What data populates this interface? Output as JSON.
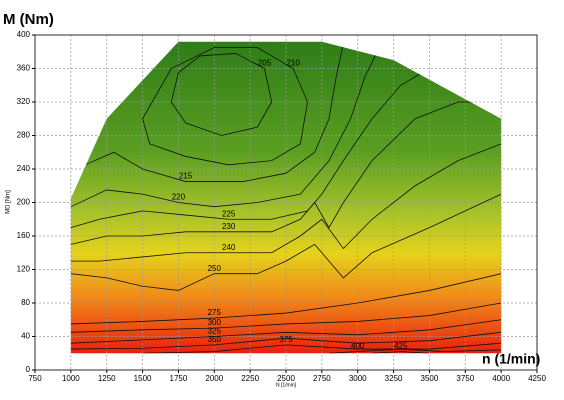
{
  "chart_data": {
    "type": "contour",
    "y_title": "M (Nm)",
    "x_title": "n (1/min)",
    "y_label": "MD [Nm]",
    "x_label": "N [1/min]",
    "xlim": [
      750,
      4250
    ],
    "xticks": [
      750,
      1000,
      1250,
      1500,
      1750,
      2000,
      2250,
      2500,
      2750,
      3000,
      3250,
      3500,
      3750,
      4000,
      4250
    ],
    "ylim": [
      0,
      400
    ],
    "yticks": [
      0,
      40,
      80,
      120,
      160,
      200,
      240,
      280,
      320,
      360,
      400
    ],
    "grid": true,
    "envelope": {
      "x": [
        1000,
        1000,
        1250,
        1750,
        2750,
        3250,
        4000,
        4000
      ],
      "y": [
        20,
        205,
        300,
        392,
        392,
        370,
        300,
        20
      ]
    },
    "contours": [
      {
        "level": 205,
        "x": [
          1750,
          1900,
          2150,
          2350,
          2400,
          2300,
          2050,
          1800,
          1700,
          1750
        ],
        "y": [
          355,
          375,
          378,
          360,
          320,
          290,
          280,
          295,
          320,
          355
        ]
      },
      {
        "level": 210,
        "x": [
          1500,
          1700,
          2000,
          2300,
          2550,
          2650,
          2600,
          2400,
          2100,
          1800,
          1550,
          1500
        ],
        "y": [
          300,
          360,
          385,
          385,
          360,
          320,
          270,
          250,
          245,
          255,
          270,
          300
        ]
      },
      {
        "level": 215,
        "x": [
          1100,
          1300,
          1500,
          1800,
          2200,
          2500,
          2700,
          2800,
          2850,
          2900
        ],
        "y": [
          245,
          260,
          240,
          225,
          225,
          235,
          260,
          300,
          350,
          390
        ]
      },
      {
        "level": 220,
        "x": [
          1000,
          1250,
          1500,
          1750,
          2000,
          2300,
          2600,
          2800,
          2950,
          3050,
          3150
        ],
        "y": [
          195,
          215,
          210,
          200,
          195,
          200,
          210,
          250,
          300,
          350,
          385
        ]
      },
      {
        "level": 225,
        "x": [
          1000,
          1200,
          1500,
          1800,
          2100,
          2400,
          2650,
          2750,
          2900,
          3100,
          3300,
          3500
        ],
        "y": [
          170,
          180,
          190,
          185,
          180,
          180,
          190,
          210,
          250,
          300,
          340,
          360
        ]
      },
      {
        "level": 230,
        "x": [
          1000,
          1250,
          1500,
          1800,
          2100,
          2400,
          2600,
          2700,
          2800,
          2900,
          3100,
          3400,
          3700,
          3950
        ],
        "y": [
          150,
          160,
          160,
          165,
          165,
          165,
          180,
          200,
          170,
          200,
          250,
          300,
          320,
          320
        ]
      },
      {
        "level": 240,
        "x": [
          1000,
          1200,
          1500,
          1800,
          2100,
          2400,
          2600,
          2750,
          2900,
          3100,
          3400,
          3700,
          4000
        ],
        "y": [
          130,
          130,
          135,
          140,
          140,
          140,
          160,
          180,
          145,
          180,
          220,
          250,
          270
        ]
      },
      {
        "level": 250,
        "x": [
          1000,
          1250,
          1500,
          1750,
          2000,
          2300,
          2500,
          2700,
          2800,
          2900,
          3100,
          3500,
          4000
        ],
        "y": [
          115,
          110,
          100,
          95,
          115,
          115,
          130,
          150,
          130,
          110,
          140,
          170,
          210
        ]
      },
      {
        "level": 275,
        "x": [
          1000,
          1500,
          2000,
          2500,
          3000,
          3500,
          4000
        ],
        "y": [
          55,
          58,
          62,
          68,
          80,
          95,
          115
        ]
      },
      {
        "level": 300,
        "x": [
          1000,
          1500,
          2000,
          2500,
          3000,
          3500,
          4000
        ],
        "y": [
          45,
          48,
          50,
          55,
          58,
          65,
          80
        ]
      },
      {
        "level": 325,
        "x": [
          1000,
          1500,
          2000,
          2500,
          3000,
          3500,
          4000
        ],
        "y": [
          32,
          36,
          40,
          45,
          42,
          48,
          60
        ]
      },
      {
        "level": 350,
        "x": [
          1000,
          1500,
          2000,
          2500,
          3000,
          3500,
          4000
        ],
        "y": [
          25,
          26,
          30,
          38,
          32,
          35,
          45
        ]
      },
      {
        "level": 375,
        "x": [
          1500,
          2000,
          2500,
          3000,
          3500,
          4000
        ],
        "y": [
          20,
          22,
          30,
          25,
          25,
          32
        ]
      },
      {
        "level": 400,
        "x": [
          2800,
          3000,
          3300,
          3600,
          4000
        ],
        "y": [
          20,
          22,
          25,
          22,
          24
        ]
      },
      {
        "level": 425,
        "x": [
          3100,
          3300,
          3500
        ],
        "y": [
          20,
          22,
          20
        ]
      }
    ]
  }
}
